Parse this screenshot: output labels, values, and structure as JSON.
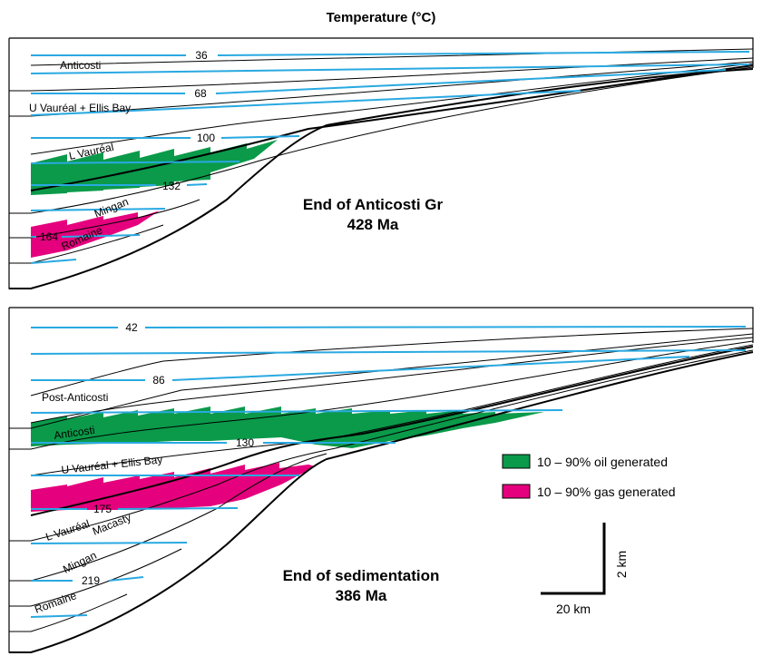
{
  "title": "Temperature (°C)",
  "colors": {
    "isotherm": "#29a9e1",
    "oil": "#0a9a4a",
    "gas": "#e5007d",
    "outline": "#000000"
  },
  "top_panel": {
    "caption_line1": "End of Anticosti Gr",
    "caption_line2": "428 Ma",
    "isotherms": [
      "36",
      "68",
      "100",
      "132",
      "164"
    ],
    "units": [
      "Anticosti",
      "U Vauréal + Ellis Bay",
      "L Vauréal",
      "Mingan",
      "Romaine"
    ]
  },
  "bottom_panel": {
    "caption_line1": "End of sedimentation",
    "caption_line2": "386 Ma",
    "isotherms": [
      "42",
      "86",
      "130",
      "175",
      "219"
    ],
    "units": [
      "Post-Anticosti",
      "Anticosti",
      "U Vauréal + Ellis Bay",
      "L Vauréal",
      "Macasty",
      "Mingan",
      "Romaine"
    ]
  },
  "legend": {
    "oil": "10 – 90% oil generated",
    "gas": "10 – 90% gas generated"
  },
  "scale": {
    "vertical": "2 km",
    "horizontal": "20 km"
  }
}
